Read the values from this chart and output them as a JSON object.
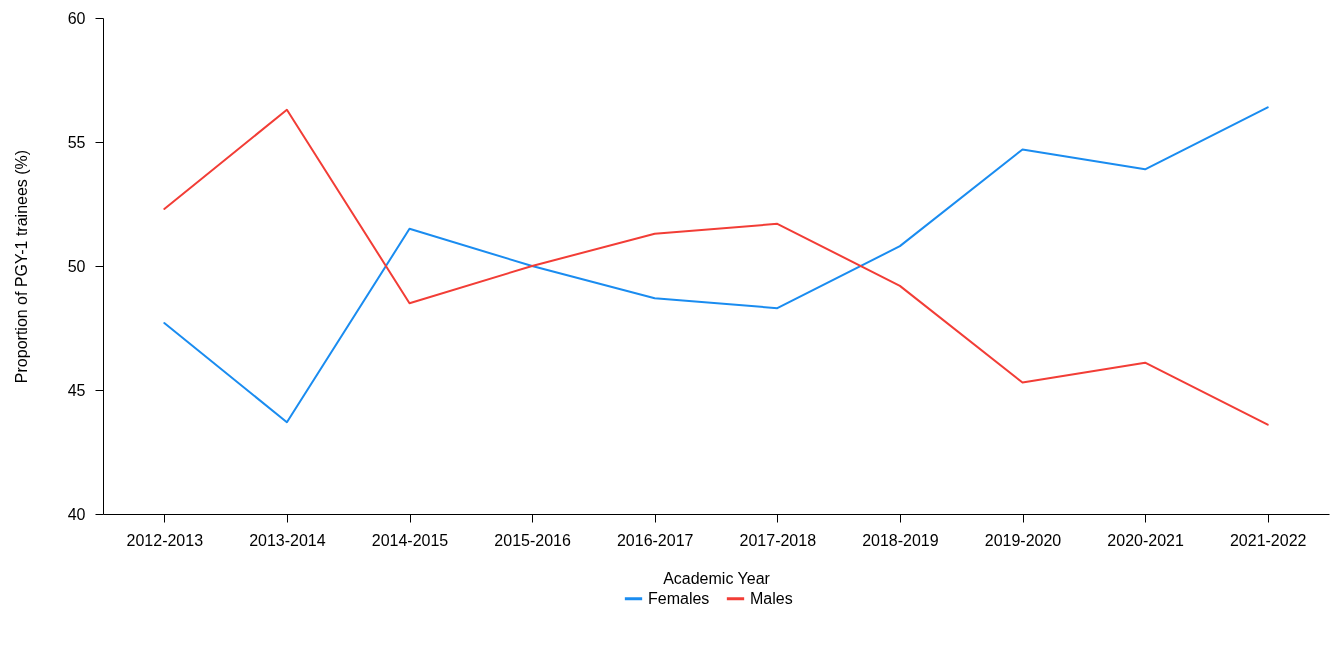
{
  "chart_data": {
    "type": "line",
    "xlabel": "Academic Year",
    "ylabel": "Proportion of PGY-1 trainees (%)",
    "categories": [
      "2012-2013",
      "2013-2014",
      "2014-2015",
      "2015-2016",
      "2016-2017",
      "2017-2018",
      "2018-2019",
      "2019-2020",
      "2020-2021",
      "2021-2022"
    ],
    "series": [
      {
        "name": "Females",
        "color": "#1a8cf0",
        "values": [
          47.7,
          43.7,
          51.5,
          50.0,
          48.7,
          48.3,
          50.8,
          54.7,
          53.9,
          56.4
        ]
      },
      {
        "name": "Males",
        "color": "#f23d36",
        "values": [
          52.3,
          56.3,
          48.5,
          50.0,
          51.3,
          51.7,
          49.2,
          45.3,
          46.1,
          43.6
        ]
      }
    ],
    "ylim": [
      40,
      60
    ],
    "yticks": [
      40,
      45,
      50,
      55,
      60
    ],
    "grid": false,
    "legend": "bottom",
    "marker": "none",
    "line_style": "solid"
  }
}
